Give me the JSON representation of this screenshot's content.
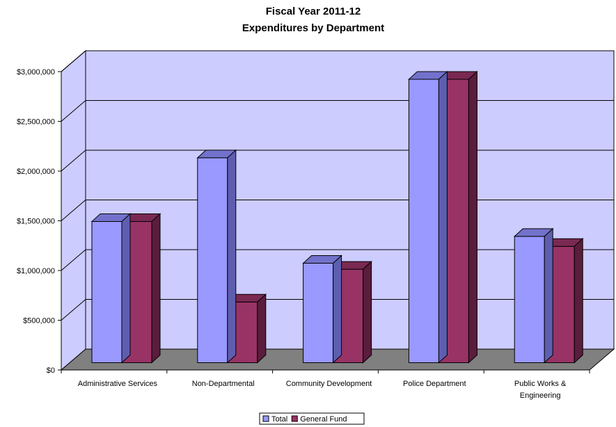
{
  "chart_data": {
    "type": "bar",
    "title": "Fiscal Year 2011-12",
    "subtitle": "Expenditures by Department",
    "categories": [
      [
        "Administrative Services"
      ],
      [
        "Non-Departmental"
      ],
      [
        "Community Development"
      ],
      [
        "Police Department"
      ],
      [
        "Public Works &",
        "Engineering"
      ]
    ],
    "series": [
      {
        "name": "Total",
        "values": [
          1420000,
          2060000,
          1000000,
          2850000,
          1270000
        ],
        "color_front": "#9999ff",
        "color_top": "#7272cc",
        "color_side": "#5e5eb0"
      },
      {
        "name": "General Fund",
        "values": [
          1420000,
          610000,
          940000,
          2850000,
          1170000
        ],
        "color_front": "#993366",
        "color_top": "#7a2952",
        "color_side": "#5a1d3c"
      }
    ],
    "ylim": [
      0,
      3000000
    ],
    "yticks": [
      0,
      500000,
      1000000,
      1500000,
      2000000,
      2500000,
      3000000
    ],
    "ytick_labels": [
      "$0",
      "$500,000",
      "$1,000,000",
      "$1,500,000",
      "$2,000,000",
      "$2,500,000",
      "$3,000,000"
    ],
    "xlabel": "",
    "ylabel": "",
    "grid": true,
    "legend_position": "bottom",
    "wall_color": "#ccccff",
    "floor_color": "#808080",
    "gridline_color": "#000000"
  }
}
